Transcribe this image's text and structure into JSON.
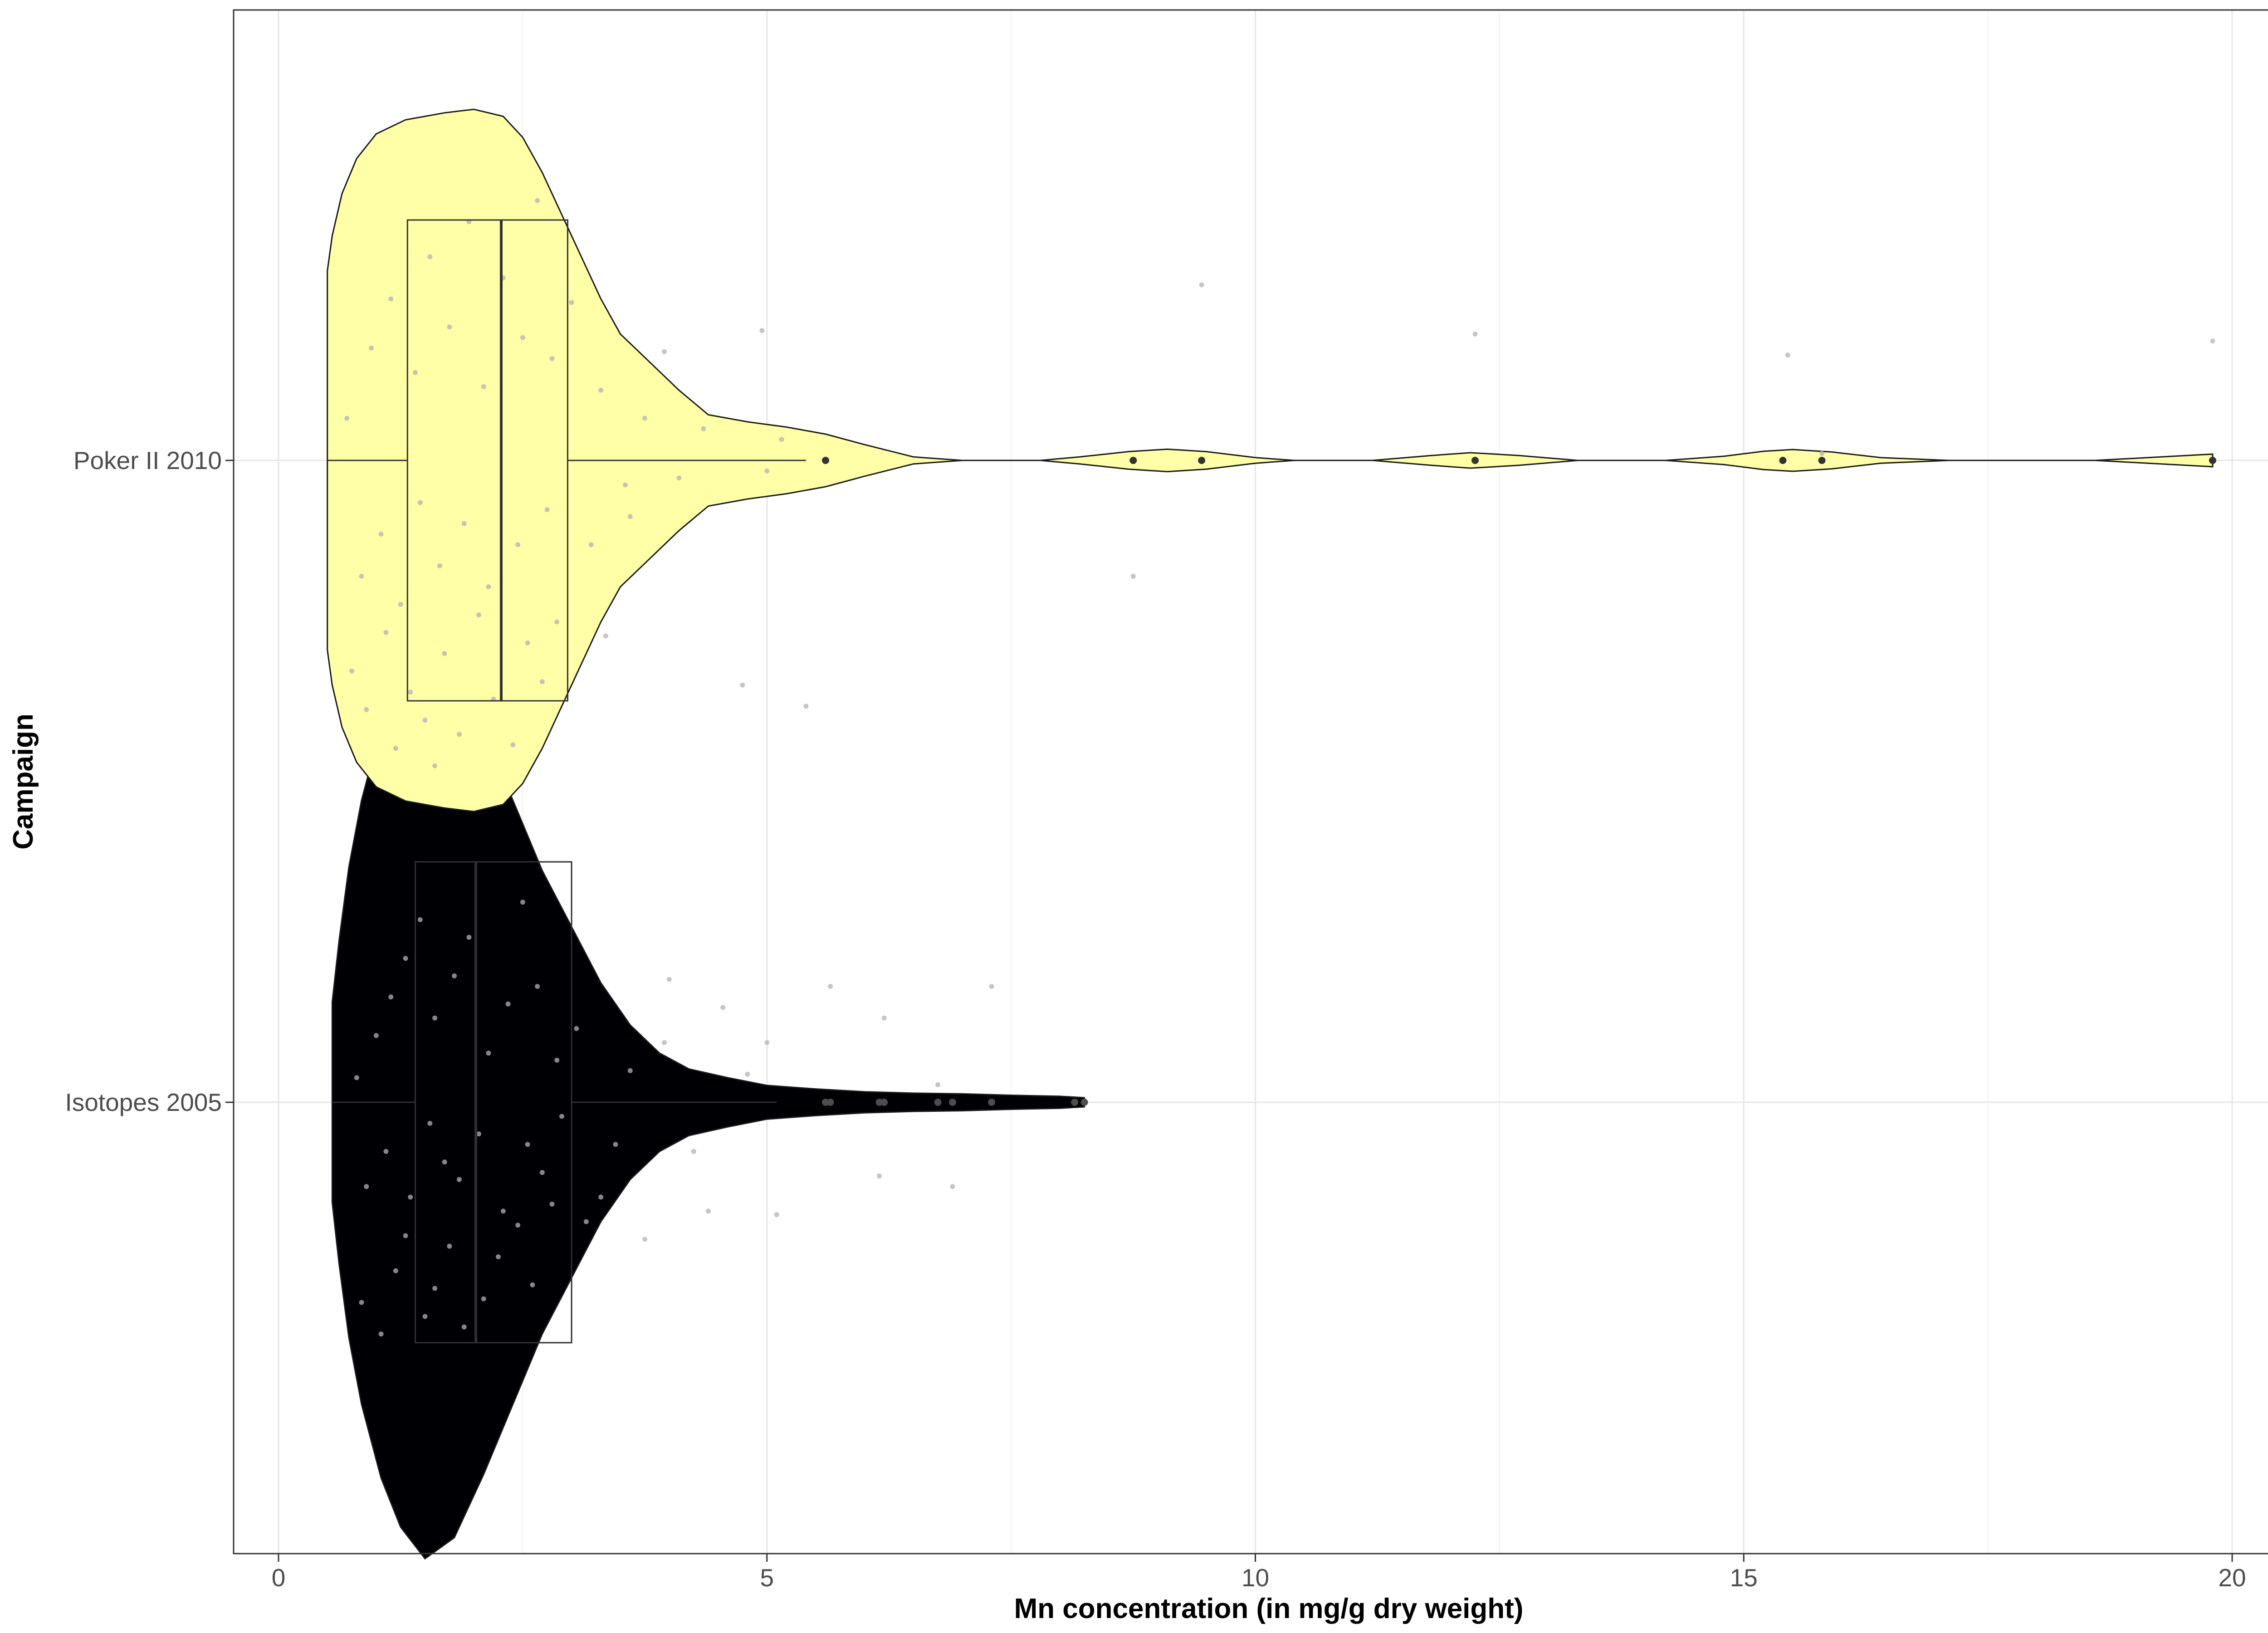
{
  "chart_data": {
    "type": "violin",
    "orientation": "horizontal",
    "xlabel": "Mn concentration (in mg/g dry weight)",
    "ylabel": "Campaign",
    "xlim": [
      -0.45,
      20.7
    ],
    "x_ticks": [
      0,
      5,
      10,
      15,
      20
    ],
    "x_tick_labels": [
      "0",
      "5",
      "10",
      "15",
      "20"
    ],
    "grid": true,
    "categories": [
      "Poker II 2010",
      "Isotopes 2005"
    ],
    "series": [
      {
        "name": "Poker II 2010",
        "fill": "#FFFFA8",
        "box_stroke": "#333333",
        "box": {
          "whisker_low": 0.5,
          "q1": 1.32,
          "median": 2.28,
          "q3": 2.96,
          "whisker_high": 5.4
        },
        "outliers": [
          5.6,
          8.75,
          9.45,
          12.25,
          15.4,
          15.8,
          19.8
        ],
        "violin": [
          [
            0.5,
            0.0
          ],
          [
            0.5,
            0.275
          ],
          [
            0.5,
            0.54
          ],
          [
            0.55,
            0.64
          ],
          [
            0.65,
            0.76
          ],
          [
            0.8,
            0.86
          ],
          [
            1.0,
            0.93
          ],
          [
            1.3,
            0.97
          ],
          [
            1.7,
            0.99
          ],
          [
            2.0,
            1.0
          ],
          [
            2.3,
            0.98
          ],
          [
            2.5,
            0.92
          ],
          [
            2.7,
            0.82
          ],
          [
            2.9,
            0.7
          ],
          [
            3.1,
            0.58
          ],
          [
            3.3,
            0.46
          ],
          [
            3.5,
            0.36
          ],
          [
            3.8,
            0.28
          ],
          [
            4.1,
            0.2
          ],
          [
            4.4,
            0.13
          ],
          [
            4.8,
            0.11
          ],
          [
            5.2,
            0.095
          ],
          [
            5.6,
            0.075
          ],
          [
            6.0,
            0.045
          ],
          [
            6.5,
            0.01
          ],
          [
            7.0,
            0.0
          ],
          [
            7.8,
            0.0
          ],
          [
            8.2,
            0.01
          ],
          [
            8.7,
            0.025
          ],
          [
            9.1,
            0.032
          ],
          [
            9.5,
            0.025
          ],
          [
            10.0,
            0.008
          ],
          [
            10.4,
            0.0
          ],
          [
            11.2,
            0.0
          ],
          [
            11.8,
            0.014
          ],
          [
            12.2,
            0.022
          ],
          [
            12.7,
            0.014
          ],
          [
            13.3,
            0.0
          ],
          [
            14.2,
            0.0
          ],
          [
            14.8,
            0.012
          ],
          [
            15.2,
            0.026
          ],
          [
            15.5,
            0.031
          ],
          [
            15.9,
            0.024
          ],
          [
            16.4,
            0.008
          ],
          [
            17.1,
            0.0
          ],
          [
            18.6,
            0.0
          ],
          [
            19.4,
            0.012
          ],
          [
            19.8,
            0.018
          ]
        ],
        "points": [
          [
            0.75,
            0.6
          ],
          [
            0.9,
            0.71
          ],
          [
            1.1,
            0.49
          ],
          [
            1.2,
            0.82
          ],
          [
            1.35,
            0.66
          ],
          [
            1.5,
            0.74
          ],
          [
            1.6,
            0.87
          ],
          [
            1.7,
            0.55
          ],
          [
            1.85,
            0.78
          ],
          [
            2.05,
            0.44
          ],
          [
            2.2,
            0.68
          ],
          [
            2.4,
            0.81
          ],
          [
            2.55,
            0.52
          ],
          [
            2.7,
            0.63
          ],
          [
            2.85,
            0.46
          ],
          [
            0.85,
            0.33
          ],
          [
            1.05,
            0.21
          ],
          [
            1.25,
            0.41
          ],
          [
            1.45,
            0.12
          ],
          [
            1.65,
            0.3
          ],
          [
            1.9,
            0.18
          ],
          [
            2.15,
            0.36
          ],
          [
            2.45,
            0.24
          ],
          [
            2.75,
            0.14
          ],
          [
            0.7,
            -0.12
          ],
          [
            0.95,
            -0.32
          ],
          [
            1.15,
            -0.46
          ],
          [
            1.4,
            -0.25
          ],
          [
            1.55,
            -0.58
          ],
          [
            1.75,
            -0.38
          ],
          [
            1.95,
            -0.68
          ],
          [
            2.1,
            -0.21
          ],
          [
            2.3,
            -0.52
          ],
          [
            2.5,
            -0.35
          ],
          [
            2.65,
            -0.74
          ],
          [
            2.8,
            -0.29
          ],
          [
            3.0,
            -0.45
          ],
          [
            3.2,
            0.24
          ],
          [
            3.35,
            0.5
          ],
          [
            3.55,
            0.07
          ],
          [
            3.75,
            -0.12
          ],
          [
            3.95,
            -0.31
          ],
          [
            3.3,
            -0.2
          ],
          [
            3.6,
            0.16
          ],
          [
            4.1,
            0.05
          ],
          [
            4.35,
            -0.09
          ],
          [
            4.75,
            0.64
          ],
          [
            4.95,
            -0.37
          ],
          [
            5.0,
            0.03
          ],
          [
            5.15,
            -0.06
          ],
          [
            5.4,
            0.7
          ],
          [
            8.75,
            0.33
          ],
          [
            9.45,
            -0.5
          ],
          [
            12.25,
            -0.36
          ],
          [
            15.45,
            -0.3
          ],
          [
            15.8,
            -0.02
          ],
          [
            19.8,
            -0.34
          ]
        ]
      },
      {
        "name": "Isotopes 2005",
        "fill": "#000004",
        "box_stroke": "#303030",
        "box": {
          "whisker_low": 0.55,
          "q1": 1.4,
          "median": 2.02,
          "q3": 3.0,
          "whisker_high": 5.1
        },
        "outliers": [
          5.6,
          5.65,
          6.15,
          6.2,
          6.75,
          6.9,
          7.3,
          8.15,
          8.25
        ],
        "violin": [
          [
            0.55,
            0.0
          ],
          [
            0.55,
            0.285
          ],
          [
            0.62,
            0.46
          ],
          [
            0.72,
            0.67
          ],
          [
            0.85,
            0.86
          ],
          [
            1.05,
            1.07
          ],
          [
            1.25,
            1.21
          ],
          [
            1.5,
            1.3
          ],
          [
            1.8,
            1.24
          ],
          [
            2.1,
            1.06
          ],
          [
            2.4,
            0.86
          ],
          [
            2.7,
            0.66
          ],
          [
            3.0,
            0.5
          ],
          [
            3.3,
            0.34
          ],
          [
            3.6,
            0.22
          ],
          [
            3.9,
            0.14
          ],
          [
            4.2,
            0.095
          ],
          [
            4.6,
            0.07
          ],
          [
            5.0,
            0.048
          ],
          [
            5.5,
            0.038
          ],
          [
            6.0,
            0.03
          ],
          [
            6.5,
            0.026
          ],
          [
            7.0,
            0.024
          ],
          [
            7.5,
            0.02
          ],
          [
            8.0,
            0.017
          ],
          [
            8.25,
            0.013
          ]
        ],
        "points": [
          [
            0.85,
            0.57
          ],
          [
            1.05,
            0.66
          ],
          [
            1.2,
            0.48
          ],
          [
            1.3,
            0.38
          ],
          [
            1.5,
            0.61
          ],
          [
            1.6,
            0.53
          ],
          [
            1.75,
            0.41
          ],
          [
            1.9,
            0.64
          ],
          [
            2.1,
            0.56
          ],
          [
            2.25,
            0.44
          ],
          [
            2.45,
            0.35
          ],
          [
            2.6,
            0.52
          ],
          [
            2.8,
            0.29
          ],
          [
            0.9,
            0.24
          ],
          [
            1.1,
            0.14
          ],
          [
            1.35,
            0.27
          ],
          [
            1.55,
            0.06
          ],
          [
            1.7,
            0.17
          ],
          [
            1.85,
            0.22
          ],
          [
            2.05,
            0.09
          ],
          [
            2.3,
            0.31
          ],
          [
            2.55,
            0.12
          ],
          [
            2.7,
            0.2
          ],
          [
            2.9,
            0.04
          ],
          [
            0.8,
            -0.07
          ],
          [
            1.0,
            -0.19
          ],
          [
            1.15,
            -0.3
          ],
          [
            1.3,
            -0.41
          ],
          [
            1.45,
            -0.52
          ],
          [
            1.6,
            -0.24
          ],
          [
            1.8,
            -0.36
          ],
          [
            1.95,
            -0.47
          ],
          [
            2.15,
            -0.14
          ],
          [
            2.35,
            -0.28
          ],
          [
            2.5,
            -0.57
          ],
          [
            2.65,
            -0.33
          ],
          [
            2.85,
            -0.12
          ],
          [
            3.05,
            -0.21
          ],
          [
            3.15,
            0.34
          ],
          [
            3.3,
            0.27
          ],
          [
            3.45,
            0.12
          ],
          [
            3.6,
            -0.09
          ],
          [
            3.75,
            0.39
          ],
          [
            3.95,
            -0.17
          ],
          [
            4.0,
            -0.35
          ],
          [
            4.25,
            0.14
          ],
          [
            4.55,
            -0.27
          ],
          [
            4.8,
            -0.08
          ],
          [
            5.0,
            -0.17
          ],
          [
            5.1,
            0.32
          ],
          [
            4.4,
            0.31
          ],
          [
            6.15,
            0.21
          ],
          [
            6.9,
            0.24
          ],
          [
            6.75,
            -0.05
          ],
          [
            7.3,
            -0.33
          ],
          [
            6.2,
            -0.24
          ],
          [
            5.65,
            -0.33
          ]
        ]
      }
    ]
  }
}
